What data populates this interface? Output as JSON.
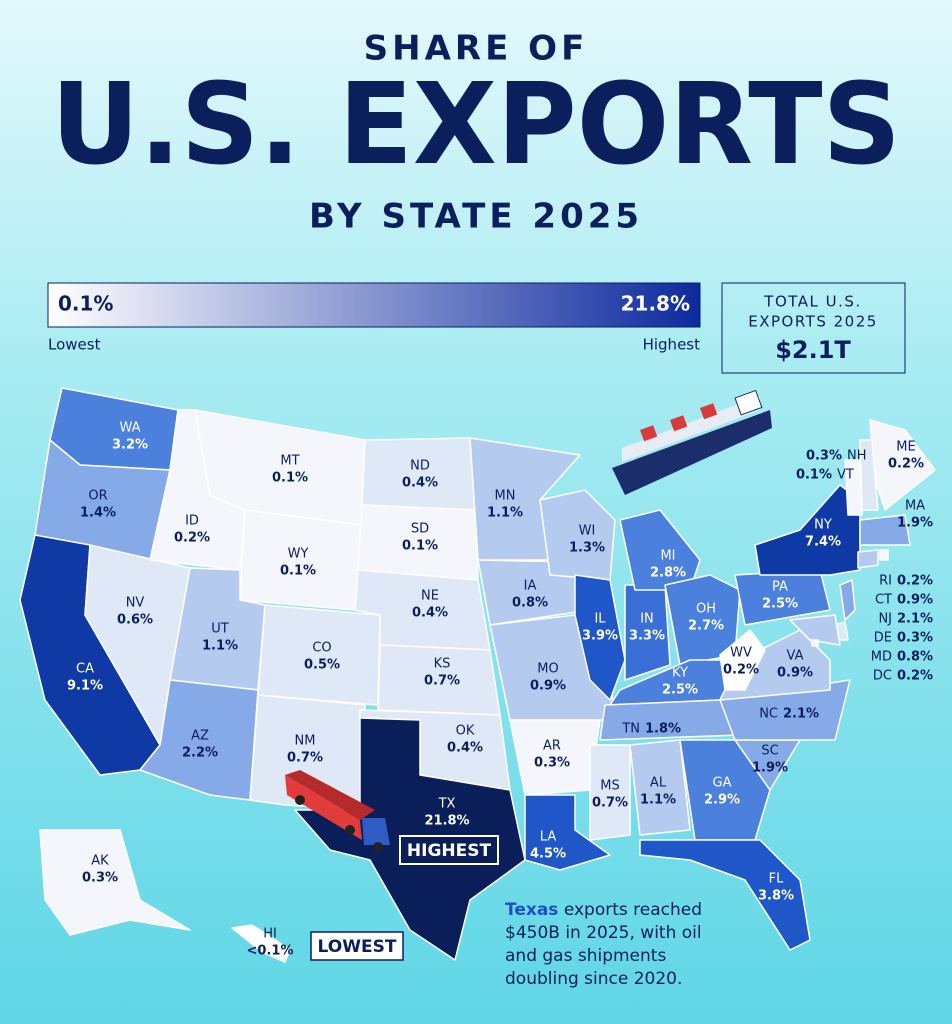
{
  "header": {
    "title_top": "SHARE OF",
    "title_main": "U.S. EXPORTS",
    "title_sub": "BY STATE 2025"
  },
  "legend": {
    "low_label": "0.1%",
    "high_label": "21.8%",
    "low_text": "Lowest",
    "high_text": "Highest",
    "low_color": "#ffffff",
    "high_color": "#0d2a9e"
  },
  "total": {
    "line_1": "TOTAL U.S.",
    "line_2": "EXPORTS 2025",
    "value": "$2.1T"
  },
  "states": [
    {
      "abbr": "WA",
      "label": "3.2%",
      "color": "#4b80dd"
    },
    {
      "abbr": "OR",
      "label": "1.4%",
      "color": "#86a9e8"
    },
    {
      "abbr": "CA",
      "label": "9.1%",
      "color": "#0f3aa6"
    },
    {
      "abbr": "NV",
      "label": "0.6%",
      "color": "#dfe8f7"
    },
    {
      "abbr": "ID",
      "label": "0.2%",
      "color": "#f4f6fb"
    },
    {
      "abbr": "MT",
      "label": "0.1%",
      "color": "#f4f6fb"
    },
    {
      "abbr": "WY",
      "label": "0.1%",
      "color": "#f4f6fb"
    },
    {
      "abbr": "UT",
      "label": "1.1%",
      "color": "#b4cbef"
    },
    {
      "abbr": "AZ",
      "label": "2.2%",
      "color": "#86a9e8"
    },
    {
      "abbr": "CO",
      "label": "0.5%",
      "color": "#dfe8f7"
    },
    {
      "abbr": "NM",
      "label": "0.7%",
      "color": "#dfe8f7"
    },
    {
      "abbr": "ND",
      "label": "0.4%",
      "color": "#dfe8f7"
    },
    {
      "abbr": "SD",
      "label": "0.1%",
      "color": "#f4f6fb"
    },
    {
      "abbr": "NE",
      "label": "0.4%",
      "color": "#dfe8f7"
    },
    {
      "abbr": "KS",
      "label": "0.7%",
      "color": "#dfe8f7"
    },
    {
      "abbr": "OK",
      "label": "0.4%",
      "color": "#dfe8f7"
    },
    {
      "abbr": "TX",
      "label": "21.8%",
      "color": "#0a1f5a"
    },
    {
      "abbr": "MN",
      "label": "1.1%",
      "color": "#b4cbef"
    },
    {
      "abbr": "IA",
      "label": "0.8%",
      "color": "#b4cbef"
    },
    {
      "abbr": "MO",
      "label": "0.9%",
      "color": "#b4cbef"
    },
    {
      "abbr": "AR",
      "label": "0.3%",
      "color": "#f4f6fb"
    },
    {
      "abbr": "LA",
      "label": "4.5%",
      "color": "#1f57c8"
    },
    {
      "abbr": "WI",
      "label": "1.3%",
      "color": "#b4cbef"
    },
    {
      "abbr": "IL",
      "label": "3.9%",
      "color": "#1f57c8"
    },
    {
      "abbr": "IN",
      "label": "3.3%",
      "color": "#3a6fd8"
    },
    {
      "abbr": "MI",
      "label": "2.8%",
      "color": "#4b80dd"
    },
    {
      "abbr": "OH",
      "label": "2.7%",
      "color": "#4b80dd"
    },
    {
      "abbr": "KY",
      "label": "2.5%",
      "color": "#4b80dd"
    },
    {
      "abbr": "TN",
      "label": "1.8%",
      "color": "#86a9e8"
    },
    {
      "abbr": "MS",
      "label": "0.7%",
      "color": "#dfe8f7"
    },
    {
      "abbr": "AL",
      "label": "1.1%",
      "color": "#b4cbef"
    },
    {
      "abbr": "GA",
      "label": "2.9%",
      "color": "#4b80dd"
    },
    {
      "abbr": "FL",
      "label": "3.8%",
      "color": "#1f57c8"
    },
    {
      "abbr": "SC",
      "label": "1.9%",
      "color": "#86a9e8"
    },
    {
      "abbr": "NC",
      "label": "2.1%",
      "color": "#86a9e8"
    },
    {
      "abbr": "VA",
      "label": "0.9%",
      "color": "#b4cbef"
    },
    {
      "abbr": "WV",
      "label": "0.2%",
      "color": "#ffffff"
    },
    {
      "abbr": "PA",
      "label": "2.5%",
      "color": "#4b80dd"
    },
    {
      "abbr": "NY",
      "label": "7.4%",
      "color": "#0f3aa6"
    },
    {
      "abbr": "ME",
      "label": "0.2%",
      "color": "#f4f6fb"
    },
    {
      "abbr": "NH",
      "label": "0.3%",
      "color": "#dfe8f7"
    },
    {
      "abbr": "VT",
      "label": "0.1%",
      "color": "#f4f6fb"
    },
    {
      "abbr": "MA",
      "label": "1.9%",
      "color": "#86a9e8"
    },
    {
      "abbr": "RI",
      "label": "0.2%",
      "color": "#f4f6fb"
    },
    {
      "abbr": "CT",
      "label": "0.9%",
      "color": "#b4cbef"
    },
    {
      "abbr": "NJ",
      "label": "2.1%",
      "color": "#86a9e8"
    },
    {
      "abbr": "DE",
      "label": "0.3%",
      "color": "#dfe8f7"
    },
    {
      "abbr": "MD",
      "label": "0.8%",
      "color": "#b4cbef"
    },
    {
      "abbr": "DC",
      "label": "0.2%",
      "color": "#f4f6fb"
    },
    {
      "abbr": "AK",
      "label": "0.3%",
      "color": "#f4f6fb"
    },
    {
      "abbr": "HI",
      "label": "<0.1%",
      "color": "#ffffff"
    }
  ],
  "badges": {
    "highest": "HIGHEST",
    "lowest": "LOWEST"
  },
  "annotation": {
    "highlight": "Texas",
    "lines": [
      " exports reached",
      "$450B in 2025, with oil",
      "and gas shipments",
      "doubling since 2020."
    ]
  }
}
